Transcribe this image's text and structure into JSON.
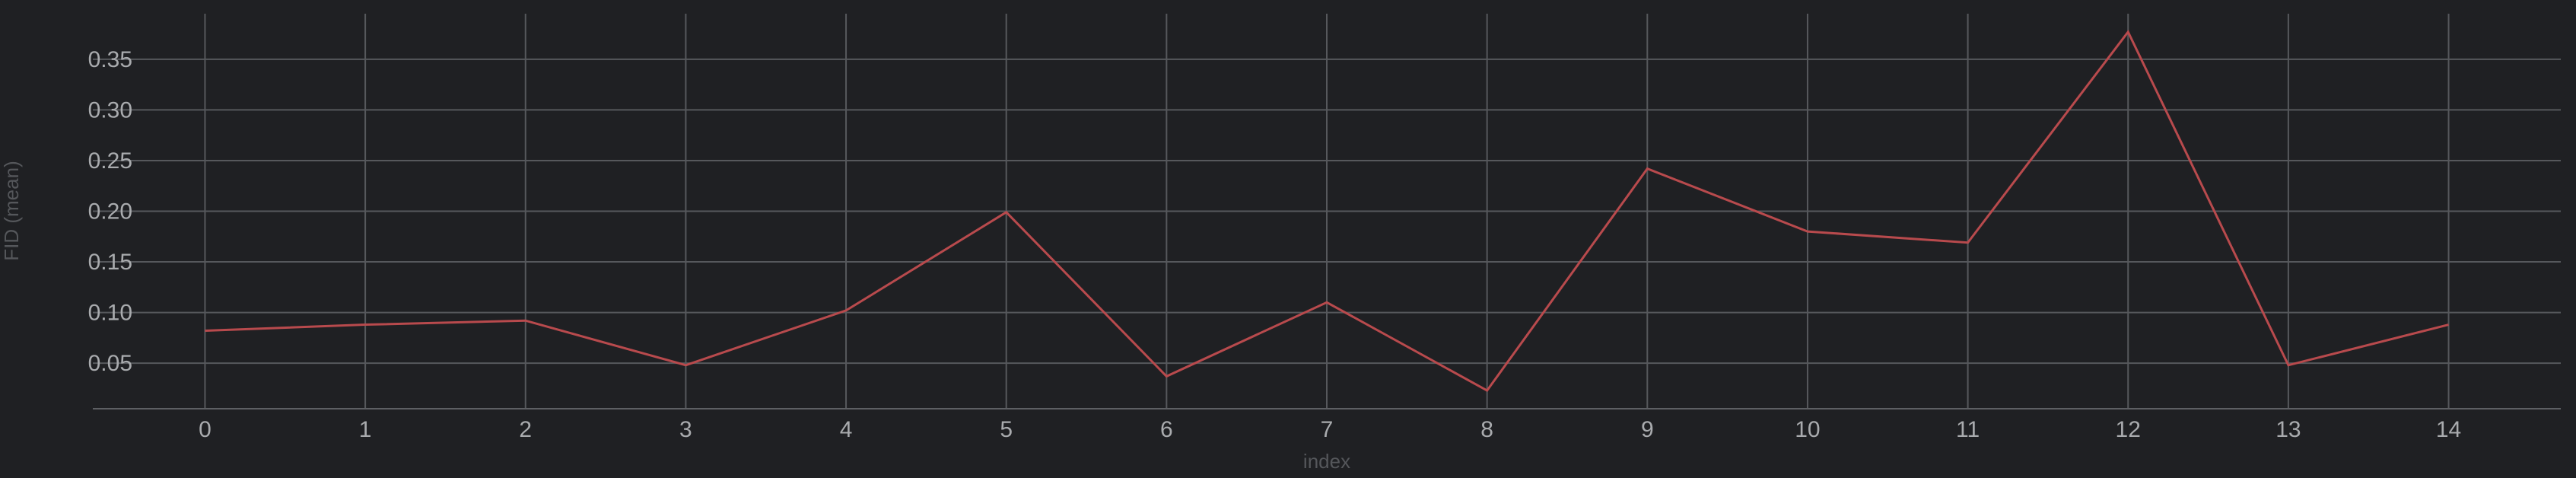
{
  "chart_data": {
    "type": "line",
    "title": "",
    "xlabel": "index",
    "ylabel": "FID (mean)",
    "x": [
      0,
      1,
      2,
      3,
      4,
      5,
      6,
      7,
      8,
      9,
      10,
      11,
      12,
      13,
      14
    ],
    "x_ticks": [
      "0",
      "1",
      "2",
      "3",
      "4",
      "5",
      "6",
      "7",
      "8",
      "9",
      "10",
      "11",
      "12",
      "13",
      "14"
    ],
    "y_ticks": [
      "0.05",
      "0.10",
      "0.15",
      "0.20",
      "0.25",
      "0.30",
      "0.35"
    ],
    "xlim": [
      -0.7,
      14.7
    ],
    "ylim": [
      0.005,
      0.395
    ],
    "grid": true,
    "series": [
      {
        "color": "#b84a4d",
        "values": [
          0.082,
          0.088,
          0.092,
          0.048,
          0.102,
          0.199,
          0.037,
          0.11,
          0.023,
          0.242,
          0.18,
          0.169,
          0.377,
          0.048,
          0.088
        ]
      }
    ]
  }
}
